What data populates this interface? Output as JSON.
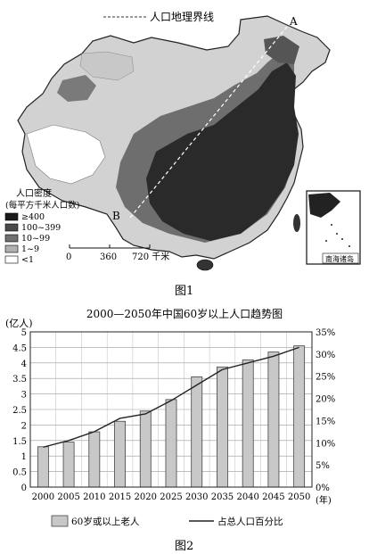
{
  "figure1": {
    "legend_line_label": "人口地理界线",
    "point_a": "A",
    "point_b": "B",
    "density_title_1": "人口密度",
    "density_title_2": "(每平方千米人口数)",
    "density_classes": [
      {
        "label": "≥400",
        "color": "#1a1a1a"
      },
      {
        "label": "100~399",
        "color": "#4a4a4a"
      },
      {
        "label": "10~99",
        "color": "#707070"
      },
      {
        "label": "1~9",
        "color": "#b0b0b0"
      },
      {
        "label": "<1",
        "color": "#ffffff"
      }
    ],
    "scale_labels": [
      "0",
      "360",
      "720 千米"
    ],
    "inset_label": "南海诸岛",
    "caption": "图1"
  },
  "figure2": {
    "caption": "图2",
    "chart_data": {
      "type": "bar",
      "title": "2000—2050年中国60岁以上人口趋势图",
      "ylabel_left": "(亿人)",
      "xlabel_unit": "(年)",
      "categories": [
        "2000",
        "2005",
        "2010",
        "2015",
        "2020",
        "2025",
        "2030",
        "2035",
        "2040",
        "2045",
        "2050"
      ],
      "y_ticks_left": [
        "0",
        "0.5",
        "1",
        "1.5",
        "2",
        "2.5",
        "3",
        "3.5",
        "4",
        "4.5",
        "5"
      ],
      "y_ticks_right": [
        "0%",
        "5%",
        "10%",
        "15%",
        "20%",
        "25%",
        "30%",
        "35%"
      ],
      "ylim_left": [
        0,
        5
      ],
      "ylim_right": [
        0,
        35
      ],
      "series": [
        {
          "name": "60岁或以上老人",
          "kind": "bar",
          "values": [
            1.3,
            1.45,
            1.78,
            2.12,
            2.45,
            2.82,
            3.55,
            3.87,
            4.1,
            4.35,
            4.55
          ]
        },
        {
          "name": "占总人口百分比",
          "kind": "line",
          "values": [
            9.0,
            10.5,
            12.5,
            15.5,
            16.5,
            19.5,
            23.0,
            26.5,
            28.0,
            29.5,
            31.5
          ]
        }
      ]
    }
  }
}
